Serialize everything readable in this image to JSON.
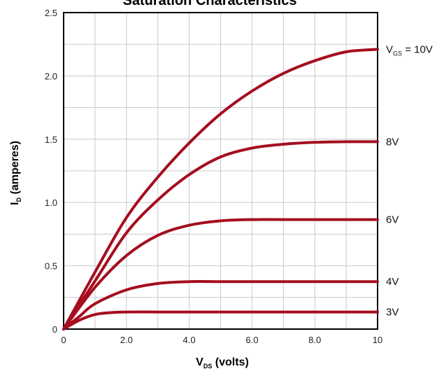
{
  "chart_data": {
    "type": "line",
    "title": "Saturation Characteristics",
    "xlabel": {
      "main": "V",
      "sub": "DS",
      "rest": " (volts)"
    },
    "ylabel": {
      "main": "I",
      "sub": "D",
      "rest": " (amperes)"
    },
    "xlim": [
      0,
      10
    ],
    "ylim": [
      0,
      2.5
    ],
    "x_ticks": [
      {
        "value": 0,
        "label": "0"
      },
      {
        "value": 2,
        "label": "2.0"
      },
      {
        "value": 4,
        "label": "4.0"
      },
      {
        "value": 6,
        "label": "6.0"
      },
      {
        "value": 8,
        "label": "8.0"
      },
      {
        "value": 10,
        "label": "10"
      }
    ],
    "y_ticks": [
      {
        "value": 0,
        "label": "0"
      },
      {
        "value": 0.5,
        "label": "0.5"
      },
      {
        "value": 1.0,
        "label": "1.0"
      },
      {
        "value": 1.5,
        "label": "1.5"
      },
      {
        "value": 2.0,
        "label": "2.0"
      },
      {
        "value": 2.5,
        "label": "2.5"
      }
    ],
    "minor_grid_step": {
      "x": 1,
      "y": 0.25
    },
    "grid": true,
    "line_color": "#a50d1f",
    "series": [
      {
        "label": {
          "main": "V",
          "sub": "GS",
          "rest": " = 10V"
        },
        "points": [
          [
            0,
            0
          ],
          [
            1,
            0.45
          ],
          [
            2,
            0.88
          ],
          [
            3,
            1.2
          ],
          [
            4,
            1.47
          ],
          [
            5,
            1.7
          ],
          [
            6,
            1.88
          ],
          [
            7,
            2.02
          ],
          [
            8,
            2.12
          ],
          [
            9,
            2.19
          ],
          [
            10,
            2.21
          ]
        ]
      },
      {
        "label": {
          "main": "8V"
        },
        "points": [
          [
            0,
            0
          ],
          [
            1,
            0.38
          ],
          [
            2,
            0.76
          ],
          [
            3,
            1.02
          ],
          [
            4,
            1.22
          ],
          [
            5,
            1.36
          ],
          [
            6,
            1.43
          ],
          [
            7,
            1.46
          ],
          [
            8,
            1.475
          ],
          [
            9,
            1.48
          ],
          [
            10,
            1.48
          ]
        ]
      },
      {
        "label": {
          "main": "6V"
        },
        "points": [
          [
            0,
            0
          ],
          [
            1,
            0.33
          ],
          [
            2,
            0.58
          ],
          [
            3,
            0.74
          ],
          [
            4,
            0.82
          ],
          [
            5,
            0.855
          ],
          [
            6,
            0.865
          ],
          [
            7,
            0.865
          ],
          [
            8,
            0.865
          ],
          [
            9,
            0.865
          ],
          [
            10,
            0.865
          ]
        ]
      },
      {
        "label": {
          "main": "4V"
        },
        "points": [
          [
            0,
            0
          ],
          [
            0.5,
            0.1
          ],
          [
            1,
            0.2
          ],
          [
            2,
            0.31
          ],
          [
            3,
            0.36
          ],
          [
            4,
            0.375
          ],
          [
            5,
            0.375
          ],
          [
            6,
            0.375
          ],
          [
            8,
            0.375
          ],
          [
            10,
            0.375
          ]
        ]
      },
      {
        "label": {
          "main": "3V"
        },
        "points": [
          [
            0,
            0
          ],
          [
            0.5,
            0.07
          ],
          [
            1,
            0.115
          ],
          [
            1.5,
            0.13
          ],
          [
            2,
            0.135
          ],
          [
            3,
            0.135
          ],
          [
            4,
            0.135
          ],
          [
            6,
            0.135
          ],
          [
            8,
            0.135
          ],
          [
            10,
            0.135
          ]
        ]
      }
    ]
  }
}
